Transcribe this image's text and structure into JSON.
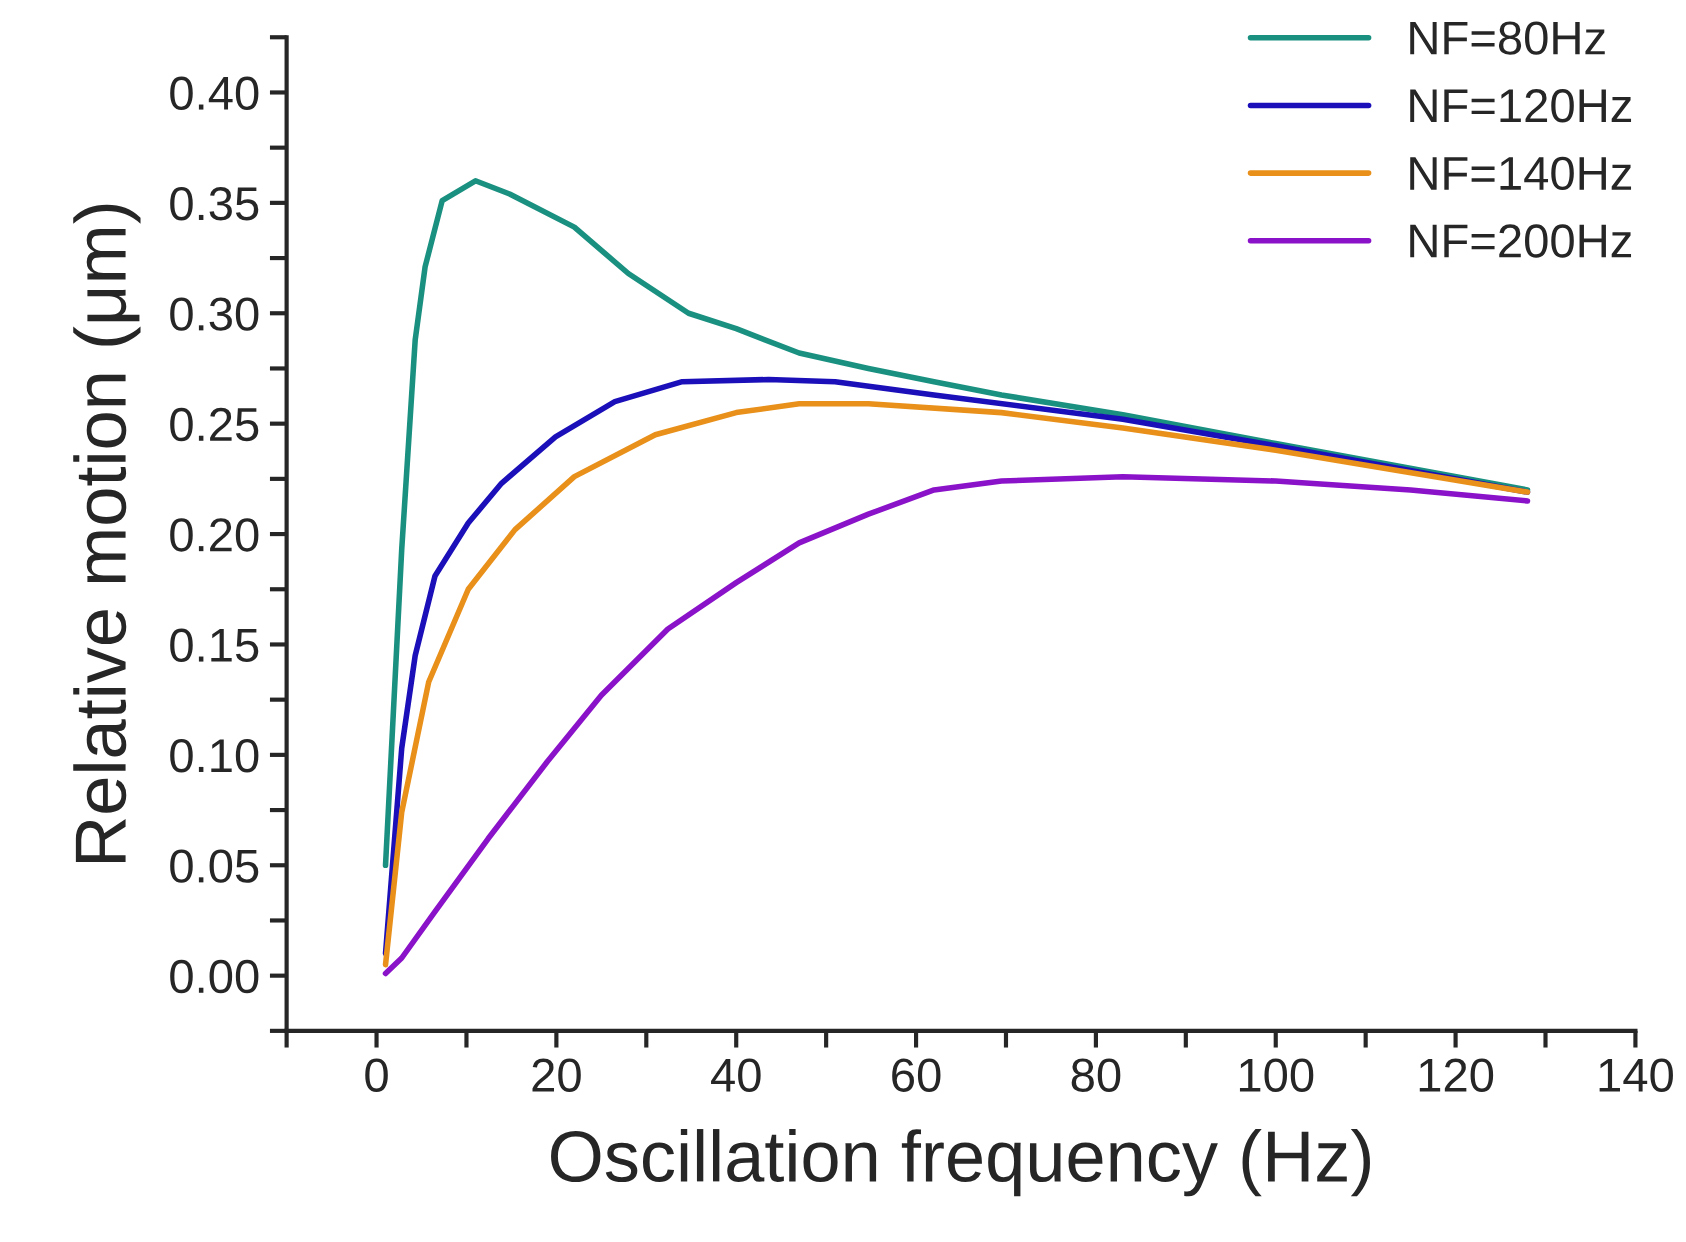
{
  "chart_data": {
    "type": "line",
    "xlabel": "Oscillation frequency (Hz)",
    "ylabel": "Relative motion (μm)",
    "xlim": [
      -10,
      140
    ],
    "ylim": [
      -0.025,
      0.425
    ],
    "xticks": [
      {
        "value": -10,
        "label": null
      },
      0,
      {
        "value": 10,
        "label": null
      },
      20,
      {
        "value": 30,
        "label": null
      },
      40,
      {
        "value": 50,
        "label": null
      },
      60,
      {
        "value": 70,
        "label": null
      },
      80,
      {
        "value": 90,
        "label": null
      },
      100,
      {
        "value": 110,
        "label": null
      },
      120,
      {
        "value": 130,
        "label": null
      },
      140
    ],
    "yticks": [
      {
        "value": -0.025,
        "label": null
      },
      {
        "value": 0,
        "label": "0.00"
      },
      {
        "value": 0.025,
        "label": null
      },
      {
        "value": 0.05,
        "label": "0.05"
      },
      {
        "value": 0.075,
        "label": null
      },
      {
        "value": 0.1,
        "label": "0.10"
      },
      {
        "value": 0.125,
        "label": null
      },
      {
        "value": 0.15,
        "label": "0.15"
      },
      {
        "value": 0.175,
        "label": null
      },
      {
        "value": 0.2,
        "label": "0.20"
      },
      {
        "value": 0.225,
        "label": null
      },
      {
        "value": 0.25,
        "label": "0.25"
      },
      {
        "value": 0.275,
        "label": null
      },
      {
        "value": 0.3,
        "label": "0.30"
      },
      {
        "value": 0.325,
        "label": null
      },
      {
        "value": 0.35,
        "label": "0.35"
      },
      {
        "value": 0.375,
        "label": null
      },
      {
        "value": 0.4,
        "label": "0.40"
      },
      {
        "value": 0.425,
        "label": null
      }
    ],
    "grid": false,
    "legend": "top right",
    "line_style": "solid",
    "marker": "none",
    "series": [
      {
        "name": "NF=80Hz",
        "color": "#1a9080",
        "x": [
          1,
          2.8,
          4.3,
          5.4,
          7.3,
          11,
          14.8,
          22,
          28,
          34.7,
          40,
          47,
          54.7,
          62,
          69.5,
          83,
          100,
          128
        ],
        "values": [
          0.05,
          0.193,
          0.288,
          0.321,
          0.351,
          0.36,
          0.354,
          0.339,
          0.318,
          0.3,
          0.293,
          0.282,
          0.275,
          0.269,
          0.263,
          0.254,
          0.241,
          0.22
        ]
      },
      {
        "name": "NF=120Hz",
        "color": "#1a0fb8",
        "x": [
          1,
          2.8,
          4.3,
          6.5,
          10.2,
          13.9,
          19.9,
          26.5,
          34,
          43.6,
          51,
          62,
          83,
          100,
          128
        ],
        "values": [
          0.01,
          0.103,
          0.145,
          0.181,
          0.205,
          0.223,
          0.244,
          0.26,
          0.269,
          0.27,
          0.269,
          0.263,
          0.252,
          0.24,
          0.219
        ]
      },
      {
        "name": "NF=140Hz",
        "color": "#e8901a",
        "x": [
          1,
          2.8,
          5.8,
          10.2,
          15.4,
          22,
          31,
          40,
          47,
          54.7,
          69.5,
          83,
          100,
          128
        ],
        "values": [
          0.005,
          0.074,
          0.133,
          0.175,
          0.202,
          0.226,
          0.245,
          0.255,
          0.259,
          0.259,
          0.255,
          0.248,
          0.238,
          0.219
        ]
      },
      {
        "name": "NF=200Hz",
        "color": "#8a12c8",
        "x": [
          1,
          2.8,
          6.5,
          12.4,
          19,
          25,
          32.4,
          40,
          47,
          54.7,
          62,
          69.5,
          83,
          100,
          115,
          128
        ],
        "values": [
          0.001,
          0.008,
          0.029,
          0.062,
          0.097,
          0.127,
          0.157,
          0.178,
          0.196,
          0.209,
          0.22,
          0.224,
          0.226,
          0.224,
          0.22,
          0.215
        ]
      }
    ]
  }
}
